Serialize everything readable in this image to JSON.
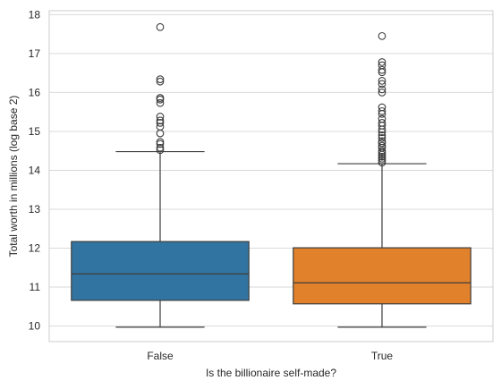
{
  "chart_data": {
    "type": "box",
    "title": "",
    "xlabel": "Is the billionaire self-made?",
    "ylabel": "Total worth in millions (log base 2)",
    "ylim": [
      9.6,
      18.1
    ],
    "yticks": [
      10,
      11,
      12,
      13,
      14,
      15,
      16,
      17,
      18
    ],
    "grid": true,
    "categories": [
      "False",
      "True"
    ],
    "colors": [
      "#3274a1",
      "#e1812c"
    ],
    "boxes": [
      {
        "category": "False",
        "whisker_low": 9.97,
        "q1": 10.66,
        "median": 11.34,
        "q3": 12.17,
        "whisker_high": 14.48,
        "outliers": [
          14.52,
          14.58,
          14.68,
          14.73,
          14.95,
          15.12,
          15.22,
          15.28,
          15.38,
          15.73,
          15.82,
          15.86,
          16.28,
          16.34,
          17.68
        ]
      },
      {
        "category": "True",
        "whisker_low": 9.97,
        "q1": 10.57,
        "median": 11.11,
        "q3": 12.01,
        "whisker_high": 14.17,
        "outliers": [
          14.2,
          14.25,
          14.3,
          14.35,
          14.4,
          14.45,
          14.5,
          14.58,
          14.63,
          14.7,
          14.75,
          14.83,
          14.9,
          14.98,
          15.05,
          15.15,
          15.22,
          15.32,
          15.45,
          15.52,
          15.62,
          16.0,
          16.08,
          16.22,
          16.3,
          16.52,
          16.58,
          16.7,
          16.78,
          17.45
        ]
      }
    ]
  }
}
